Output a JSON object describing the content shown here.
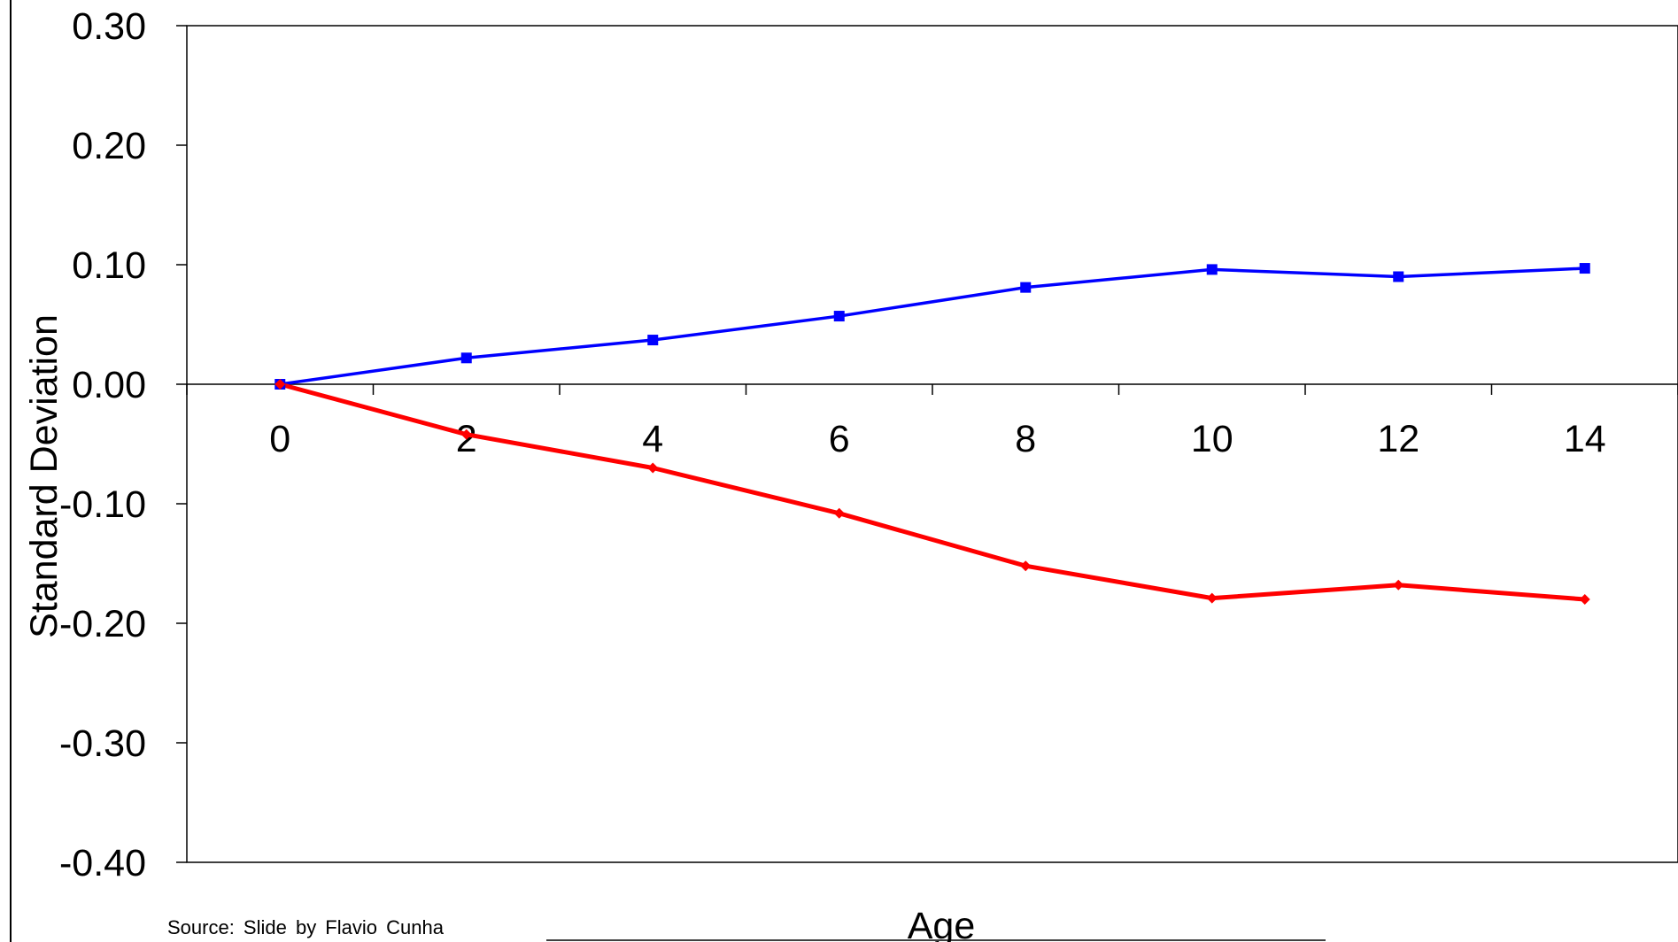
{
  "chart_data": {
    "type": "line",
    "x": [
      0,
      2,
      4,
      6,
      8,
      10,
      12,
      14
    ],
    "xlabel": "Age",
    "ylabel": "Standard Deviation",
    "ylim": [
      -0.4,
      0.3
    ],
    "xlim": [
      -1,
      15
    ],
    "yticks": [
      "0.30",
      "0.20",
      "0.10",
      "0.00",
      "-0.10",
      "-0.20",
      "-0.30",
      "-0.40"
    ],
    "xticks": [
      "0",
      "2",
      "4",
      "6",
      "8",
      "10",
      "12",
      "14"
    ],
    "grid": false,
    "series": [
      {
        "values": [
          0.0,
          0.022,
          0.037,
          0.057,
          0.081,
          0.096,
          0.09,
          0.097
        ],
        "color": "#0000ff",
        "marker": "square"
      },
      {
        "values": [
          0.0,
          -0.042,
          -0.07,
          -0.108,
          -0.152,
          -0.179,
          -0.168,
          -0.18
        ],
        "color": "#ff0000",
        "marker": "diamond"
      }
    ]
  },
  "source": "Source: Slide by Flavio Cunha"
}
